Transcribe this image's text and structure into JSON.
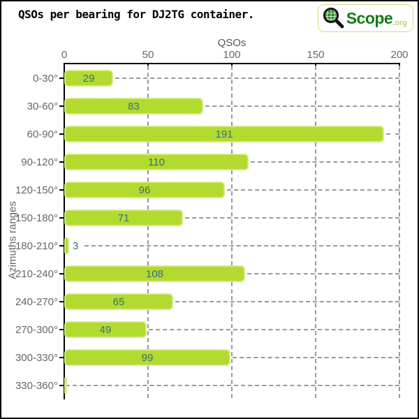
{
  "title": "QSOs per bearing for DJ2TG container.",
  "logo": {
    "icon": "magnifier-globe-icon",
    "text": "Scope",
    "suffix": ".org",
    "text_color": "#157a15",
    "suffix_color": "#b9d163",
    "border_color": "#cde189"
  },
  "chart_data": {
    "type": "bar",
    "orientation": "horizontal",
    "xlabel": "QSOs",
    "ylabel": "Azimuths ranges",
    "categories": [
      "0-30°",
      "30-60°",
      "60-90°",
      "90-120°",
      "120-150°",
      "150-180°",
      "180-210°",
      "210-240°",
      "240-270°",
      "270-300°",
      "300-330°",
      "330-360°"
    ],
    "values": [
      29,
      83,
      191,
      110,
      96,
      71,
      3,
      108,
      65,
      49,
      99,
      0
    ],
    "xlim": [
      0,
      200
    ],
    "xticks": [
      0,
      50,
      100,
      150,
      200
    ],
    "grid": "dashed",
    "legend": "none",
    "colors": {
      "bar_fill": "#b3da2e",
      "bar_border": "#d3ec85",
      "value_text": "#3c6e70",
      "grid_line": "#9a9a9a",
      "axis_line": "#000000",
      "tick_text": "#666666"
    }
  }
}
